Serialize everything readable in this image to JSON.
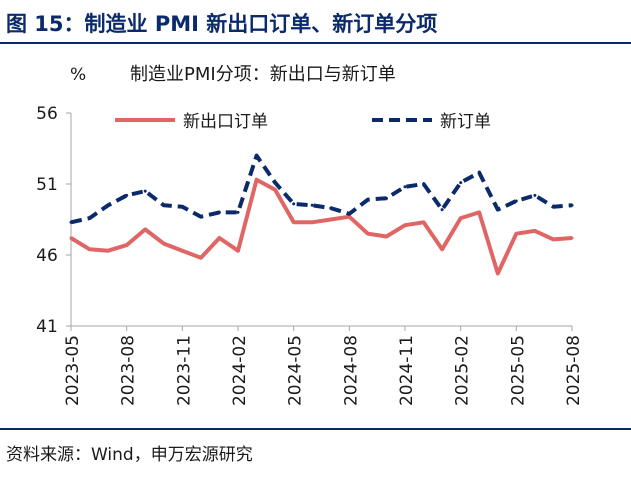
{
  "figure_title": "图 15：制造业 PMI 新出口订单、新订单分项",
  "source": "资料来源：Wind，申万宏源研究",
  "chart_data": {
    "type": "line",
    "title": "制造业PMI分项：新出口与新订单",
    "ylabel": "%",
    "xlabel": "",
    "ylim": [
      41,
      56
    ],
    "yticks": [
      41,
      46,
      51,
      56
    ],
    "legend_placement": "top",
    "grid": false,
    "x": [
      "2023-05",
      "2023-06",
      "2023-07",
      "2023-08",
      "2023-09",
      "2023-10",
      "2023-11",
      "2023-12",
      "2024-01",
      "2024-02",
      "2024-03",
      "2024-04",
      "2024-05",
      "2024-06",
      "2024-07",
      "2024-08",
      "2024-09",
      "2024-10",
      "2024-11",
      "2024-12",
      "2025-01",
      "2025-02",
      "2025-03",
      "2025-04",
      "2025-05",
      "2025-06",
      "2025-07",
      "2025-08"
    ],
    "xtick_labels": [
      "2023-05",
      "2023-08",
      "2023-11",
      "2024-02",
      "2024-05",
      "2024-08",
      "2024-11",
      "2025-02",
      "2025-05",
      "2025-08"
    ],
    "series": [
      {
        "name": "新出口订单",
        "color": "#e06666",
        "style": "solid",
        "values": [
          47.2,
          46.4,
          46.3,
          46.7,
          47.8,
          46.8,
          46.3,
          45.8,
          47.2,
          46.3,
          51.3,
          50.6,
          48.3,
          48.3,
          48.5,
          48.7,
          47.5,
          47.3,
          48.1,
          48.3,
          46.4,
          48.6,
          49.0,
          44.7,
          47.5,
          47.7,
          47.1,
          47.2
        ]
      },
      {
        "name": "新订单",
        "color": "#0b2a6b",
        "style": "dashed",
        "values": [
          48.3,
          48.6,
          49.5,
          50.2,
          50.5,
          49.5,
          49.4,
          48.7,
          49.0,
          49.0,
          53.0,
          51.1,
          49.6,
          49.5,
          49.3,
          48.9,
          49.9,
          50.0,
          50.8,
          51.0,
          49.2,
          51.1,
          51.8,
          49.2,
          49.8,
          50.2,
          49.4,
          49.5
        ]
      }
    ]
  }
}
